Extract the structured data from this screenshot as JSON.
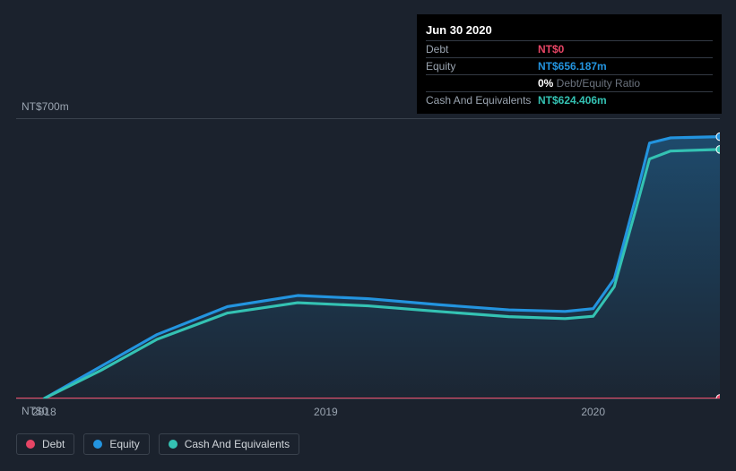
{
  "tooltip": {
    "date": "Jun 30 2020",
    "rows": [
      {
        "label": "Debt",
        "value": "NT$0",
        "color": "#e64565"
      },
      {
        "label": "Equity",
        "value": "NT$656.187m",
        "color": "#2394df"
      },
      {
        "label": "",
        "value": "0%",
        "suffix": " Debt/Equity Ratio",
        "color": "#ffffff"
      },
      {
        "label": "Cash And Equivalents",
        "value": "NT$624.406m",
        "color": "#34c2b3"
      }
    ]
  },
  "chart": {
    "type": "area",
    "background_color": "#1b222d",
    "grid_color": "#3a424d",
    "y_axis": {
      "min": 0,
      "max": 700,
      "top_label": "NT$700m",
      "bottom_label": "NT$0"
    },
    "x_axis": {
      "ticks": [
        {
          "label": "2018",
          "pos": 0.04
        },
        {
          "label": "2019",
          "pos": 0.44
        },
        {
          "label": "2020",
          "pos": 0.82
        }
      ]
    },
    "series": [
      {
        "name": "Debt",
        "color": "#e64565",
        "fill": false,
        "stroke_width": 2,
        "end_marker": true,
        "points": [
          {
            "x": 0.0,
            "y": 0
          },
          {
            "x": 1.0,
            "y": 0
          }
        ]
      },
      {
        "name": "Equity",
        "color": "#2394df",
        "fill": true,
        "fill_opacity_top": 0.35,
        "fill_opacity_bottom": 0.03,
        "stroke_width": 3,
        "end_marker": true,
        "points": [
          {
            "x": 0.04,
            "y": 0
          },
          {
            "x": 0.12,
            "y": 80
          },
          {
            "x": 0.2,
            "y": 160
          },
          {
            "x": 0.3,
            "y": 230
          },
          {
            "x": 0.4,
            "y": 258
          },
          {
            "x": 0.5,
            "y": 250
          },
          {
            "x": 0.6,
            "y": 235
          },
          {
            "x": 0.7,
            "y": 222
          },
          {
            "x": 0.78,
            "y": 218
          },
          {
            "x": 0.82,
            "y": 225
          },
          {
            "x": 0.85,
            "y": 300
          },
          {
            "x": 0.88,
            "y": 500
          },
          {
            "x": 0.9,
            "y": 640
          },
          {
            "x": 0.93,
            "y": 653
          },
          {
            "x": 1.0,
            "y": 656
          }
        ]
      },
      {
        "name": "Cash And Equivalents",
        "color": "#34c2b3",
        "fill": false,
        "stroke_width": 3,
        "end_marker": true,
        "points": [
          {
            "x": 0.04,
            "y": 0
          },
          {
            "x": 0.12,
            "y": 70
          },
          {
            "x": 0.2,
            "y": 148
          },
          {
            "x": 0.3,
            "y": 214
          },
          {
            "x": 0.4,
            "y": 240
          },
          {
            "x": 0.5,
            "y": 232
          },
          {
            "x": 0.6,
            "y": 218
          },
          {
            "x": 0.7,
            "y": 205
          },
          {
            "x": 0.78,
            "y": 200
          },
          {
            "x": 0.82,
            "y": 206
          },
          {
            "x": 0.85,
            "y": 280
          },
          {
            "x": 0.88,
            "y": 470
          },
          {
            "x": 0.9,
            "y": 600
          },
          {
            "x": 0.93,
            "y": 620
          },
          {
            "x": 1.0,
            "y": 624
          }
        ]
      }
    ],
    "legend": [
      {
        "label": "Debt",
        "color": "#e64565"
      },
      {
        "label": "Equity",
        "color": "#2394df"
      },
      {
        "label": "Cash And Equivalents",
        "color": "#34c2b3"
      }
    ]
  }
}
